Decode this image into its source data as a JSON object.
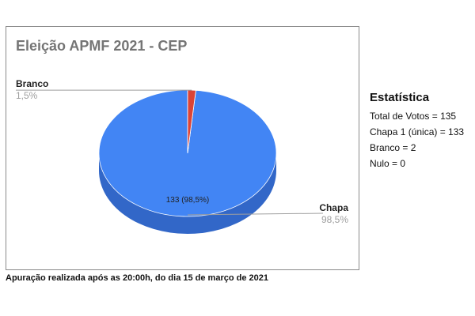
{
  "chart_data": {
    "type": "pie",
    "title": "Eleição APMF 2021 - CEP",
    "three_d": true,
    "categories": [
      "Chapa",
      "Branco"
    ],
    "values": [
      133,
      2
    ],
    "percent_labels": [
      "98,5%",
      "1,5%"
    ],
    "slice_labels": [
      "133 (98,5%)",
      ""
    ],
    "colors": [
      "#4285f4",
      "#db4437"
    ],
    "side_colors": [
      "#3267c8",
      "#a8342a"
    ],
    "legend": "callout-labels"
  },
  "stats": {
    "title": "Estatística",
    "lines": [
      "Total de Votos = 135",
      "Chapa 1 (única) = 133",
      "Branco = 2",
      "Nulo = 0"
    ]
  },
  "footnote": "Apuração realizada após as 20:00h, do dia 15 de março de 2021"
}
